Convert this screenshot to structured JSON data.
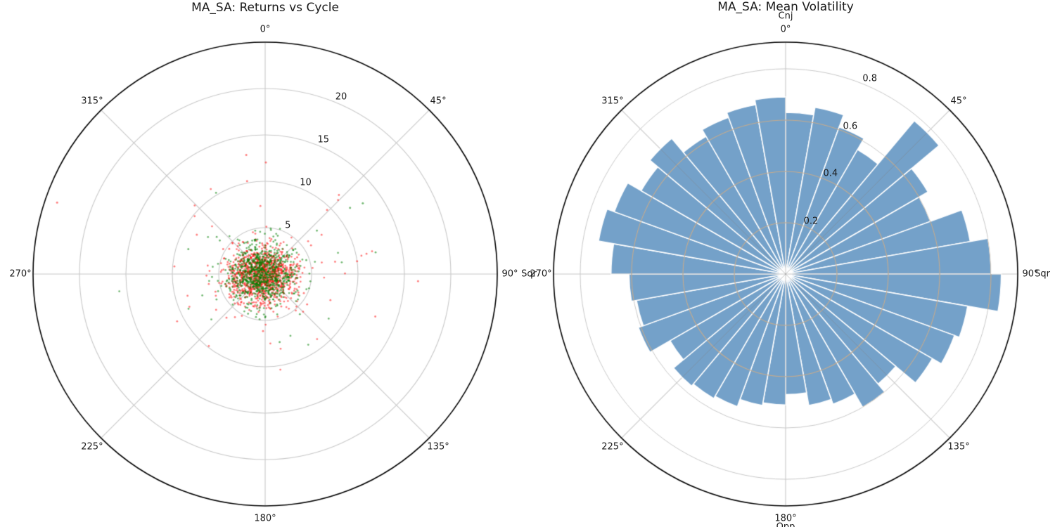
{
  "chart_data": [
    {
      "type": "scatter",
      "projection": "polar",
      "title": "MA_SA: Returns vs Cycle",
      "theta_zero": "top",
      "theta_direction": "clockwise",
      "theta_tick_deg": [
        0,
        45,
        90,
        135,
        180,
        225,
        270,
        315
      ],
      "theta_tick_labels": [
        "0°",
        "45°",
        "90°",
        "135°",
        "180°",
        "225°",
        "270°",
        "315°"
      ],
      "r_ticks": [
        5,
        10,
        15,
        20
      ],
      "r_tick_labels": [
        "5",
        "10",
        "15",
        "20"
      ],
      "rmax": 25,
      "grid": true,
      "legend": "none",
      "series": [
        {
          "name": "red",
          "color": "rgba(255,22,22,0.55)",
          "n": 1100,
          "sigma_x": 1.9,
          "sigma_y": 1.55,
          "center_offset": [
            -0.35,
            0.1
          ],
          "tail_fraction": 0.055,
          "tail_scale": 3.0,
          "seed": 42
        },
        {
          "name": "green",
          "color": "rgba(0,128,0,0.55)",
          "n": 850,
          "sigma_x": 1.8,
          "sigma_y": 1.5,
          "center_offset": [
            -0.2,
            0.05
          ],
          "tail_fraction": 0.05,
          "tail_scale": 2.8,
          "seed": 7
        }
      ],
      "outlier_points": [
        {
          "series": "red",
          "theta_deg": 289,
          "r": 23.7
        },
        {
          "series": "red",
          "theta_deg": 351,
          "r": 13.0
        },
        {
          "series": "red",
          "theta_deg": 349,
          "r": 10.2
        },
        {
          "series": "red",
          "theta_deg": 44,
          "r": 9.6
        },
        {
          "series": "red",
          "theta_deg": 82,
          "r": 10.0
        },
        {
          "series": "red",
          "theta_deg": 300,
          "r": 8.5
        },
        {
          "series": "green",
          "theta_deg": 52,
          "r": 11.6
        },
        {
          "series": "green",
          "theta_deg": 54,
          "r": 13.0
        },
        {
          "series": "green",
          "theta_deg": 288,
          "r": 8.7
        },
        {
          "series": "green",
          "theta_deg": 168,
          "r": 7.5
        }
      ]
    },
    {
      "type": "bar",
      "projection": "polar",
      "title": "MA_SA: Mean Volatility",
      "theta_zero": "top",
      "theta_direction": "clockwise",
      "theta_tick_deg": [
        0,
        45,
        90,
        135,
        180,
        225,
        270,
        315
      ],
      "theta_tick_labels": [
        "0°",
        "45°",
        "90°",
        "135°",
        "180°",
        "225°",
        "270°",
        "315°"
      ],
      "r_ticks": [
        0.2,
        0.4,
        0.6,
        0.8
      ],
      "r_tick_labels": [
        "0.2",
        "0.4",
        "0.6",
        "0.8"
      ],
      "rmax": 0.904,
      "grid": true,
      "legend": "none",
      "bar_width_deg": 10,
      "bar_color": "#74A1C9",
      "bar_edge_color": "#ffffff",
      "theta_centers_deg": [
        5,
        15,
        25,
        35,
        45,
        55,
        65,
        75,
        85,
        95,
        105,
        115,
        125,
        135,
        145,
        155,
        165,
        175,
        185,
        195,
        205,
        215,
        225,
        235,
        245,
        255,
        265,
        275,
        285,
        295,
        305,
        315,
        325,
        335,
        345,
        355
      ],
      "values": [
        0.63,
        0.66,
        0.61,
        0.56,
        0.78,
        0.64,
        0.6,
        0.73,
        0.8,
        0.84,
        0.72,
        0.7,
        0.66,
        0.56,
        0.6,
        0.54,
        0.52,
        0.47,
        0.51,
        0.52,
        0.55,
        0.56,
        0.57,
        0.52,
        0.61,
        0.59,
        0.61,
        0.68,
        0.74,
        0.71,
        0.65,
        0.69,
        0.62,
        0.65,
        0.67,
        0.69
      ],
      "annotations": [
        {
          "label": "Cnj",
          "theta_deg": 0
        },
        {
          "label": "Sqr",
          "theta_deg": 90
        },
        {
          "label": "Opp",
          "theta_deg": 180
        },
        {
          "label": "Sqr",
          "theta_deg": 270
        }
      ]
    }
  ],
  "colors": {
    "scatter_red": "rgba(255,22,22,0.55)",
    "scatter_green": "rgba(0,128,0,0.55)",
    "bar_fill": "#74A1C9",
    "grid_gray": "#c8c8c8",
    "grid_on_bars": "#c4ab8f",
    "outline_black": "#000000",
    "text": "#1a1a1a"
  }
}
